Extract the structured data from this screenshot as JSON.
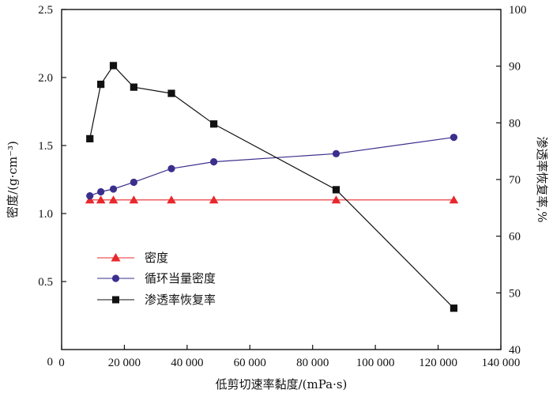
{
  "chart_data": {
    "type": "line",
    "xlabel": "低剪切速率黏度/(mPa·s)",
    "ylabel_left": "密度/(g·cm⁻³)",
    "ylabel_right": "渗透率恢复率,%",
    "xlim": [
      0,
      140000
    ],
    "ylim_left": [
      0,
      2.5
    ],
    "ylim_right": [
      40,
      100
    ],
    "x_ticks": [
      0,
      20000,
      40000,
      60000,
      80000,
      100000,
      120000,
      140000
    ],
    "x_tick_labels": [
      "0",
      "20 000",
      "40 000",
      "60 000",
      "80 000",
      "100 000",
      "120 000",
      "140 000"
    ],
    "y_left_ticks": [
      0.5,
      1.0,
      1.5,
      2.0,
      2.5
    ],
    "y_left_tick_labels": [
      "0.5",
      "1.0",
      "1.5",
      "2.0",
      "2.5"
    ],
    "y_right_ticks": [
      40,
      50,
      60,
      70,
      80,
      90,
      100
    ],
    "y_right_tick_labels": [
      "40",
      "50",
      "60",
      "70",
      "80",
      "90",
      "100"
    ],
    "grid": false,
    "legend_position": "bottom-left",
    "series": [
      {
        "name": "密度",
        "axis": "left",
        "marker": "triangle",
        "color": "#e8282d",
        "x": [
          9000,
          12500,
          16500,
          23000,
          35000,
          48500,
          87500,
          125000
        ],
        "y": [
          1.1,
          1.1,
          1.1,
          1.1,
          1.1,
          1.1,
          1.1,
          1.1
        ]
      },
      {
        "name": "循环当量密度",
        "axis": "left",
        "marker": "circle",
        "color": "#3a2f8c",
        "x": [
          9000,
          12500,
          16500,
          23000,
          35000,
          48500,
          87500,
          125000
        ],
        "y": [
          1.13,
          1.16,
          1.18,
          1.23,
          1.33,
          1.38,
          1.44,
          1.56
        ]
      },
      {
        "name": "渗透率恢复率",
        "axis": "right",
        "marker": "square",
        "color": "#111111",
        "x": [
          9000,
          12500,
          16500,
          23000,
          35000,
          48500,
          87500,
          125000
        ],
        "y": [
          77.2,
          86.8,
          90.1,
          86.3,
          85.2,
          79.8,
          68.2,
          47.3
        ]
      }
    ]
  }
}
